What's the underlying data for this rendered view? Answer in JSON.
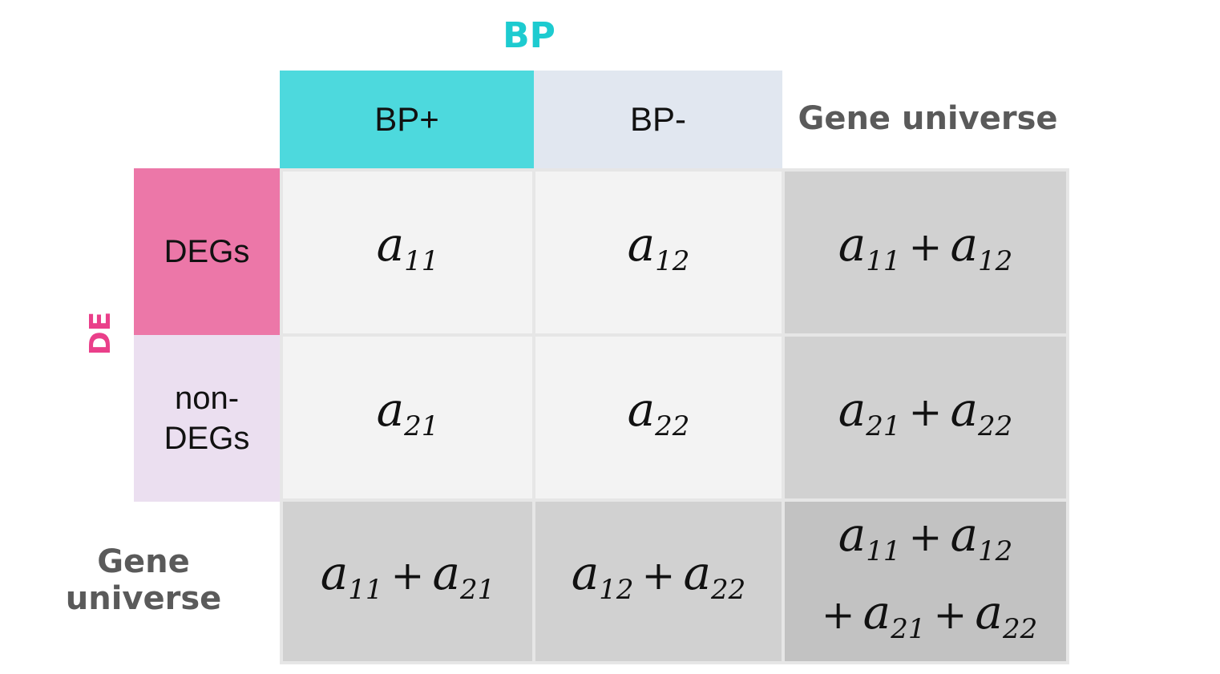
{
  "axis": {
    "top_label": "BP",
    "left_label": "DE",
    "top_color": "#1dcbd0",
    "left_color": "#ea3f8a"
  },
  "columns": [
    {
      "label": "BP+",
      "bg": "#4dd9dd"
    },
    {
      "label": "BP-",
      "bg": "#e1e7f0"
    }
  ],
  "rows": [
    {
      "label": "DEGs",
      "bg": "#ec77a8"
    },
    {
      "label": "non-\nDEGs",
      "bg": "#ebdff0"
    }
  ],
  "margin_label_col": "Gene universe",
  "margin_label_row": "Gene universe",
  "cells": {
    "r1c1": [
      [
        "a",
        "11"
      ]
    ],
    "r1c2": [
      [
        "a",
        "12"
      ]
    ],
    "r2c1": [
      [
        "a",
        "21"
      ]
    ],
    "r2c2": [
      [
        "a",
        "22"
      ]
    ],
    "r1t": [
      [
        "a",
        "11"
      ],
      [
        "a",
        "12"
      ]
    ],
    "r2t": [
      [
        "a",
        "21"
      ],
      [
        "a",
        "22"
      ]
    ],
    "t_c1": [
      [
        "a",
        "11"
      ],
      [
        "a",
        "21"
      ]
    ],
    "t_c2": [
      [
        "a",
        "12"
      ],
      [
        "a",
        "22"
      ]
    ],
    "grand_line1": [
      [
        "a",
        "11"
      ],
      [
        "a",
        "12"
      ]
    ],
    "grand_line2": [
      [
        "a",
        "21"
      ],
      [
        "a",
        "22"
      ]
    ]
  },
  "colors": {
    "inner_cell": "#f3f3f3",
    "total_cell": "#d1d1d1",
    "grand_cell": "#c2c2c2",
    "grid_line": "#e6e6e6"
  }
}
